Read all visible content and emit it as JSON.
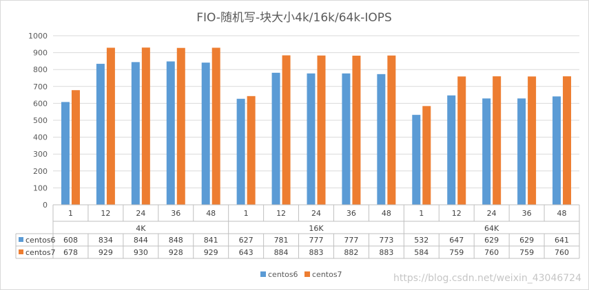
{
  "chart_data": {
    "type": "bar",
    "title": "FIO-随机写-块大小4k/16k/64k-IOPS",
    "groups": [
      {
        "label": "4K",
        "categories": [
          "1",
          "12",
          "24",
          "36",
          "48"
        ]
      },
      {
        "label": "16K",
        "categories": [
          "1",
          "12",
          "24",
          "36",
          "48"
        ]
      },
      {
        "label": "64K",
        "categories": [
          "1",
          "12",
          "24",
          "36",
          "48"
        ]
      }
    ],
    "series": [
      {
        "name": "centos6",
        "color": "#5b9bd5",
        "values": [
          608,
          834,
          844,
          848,
          841,
          627,
          781,
          777,
          777,
          773,
          532,
          647,
          629,
          629,
          641
        ]
      },
      {
        "name": "centos7",
        "color": "#ed7d31",
        "values": [
          678,
          929,
          930,
          928,
          929,
          643,
          884,
          883,
          882,
          883,
          584,
          759,
          760,
          759,
          760
        ]
      }
    ],
    "ylim": [
      0,
      1000
    ],
    "yticks": [
      0,
      100,
      200,
      300,
      400,
      500,
      600,
      700,
      800,
      900,
      1000
    ],
    "grid": true,
    "legend_position": "bottom",
    "data_table": true
  },
  "watermark": "https://blog.csdn.net/weixin_43046724"
}
